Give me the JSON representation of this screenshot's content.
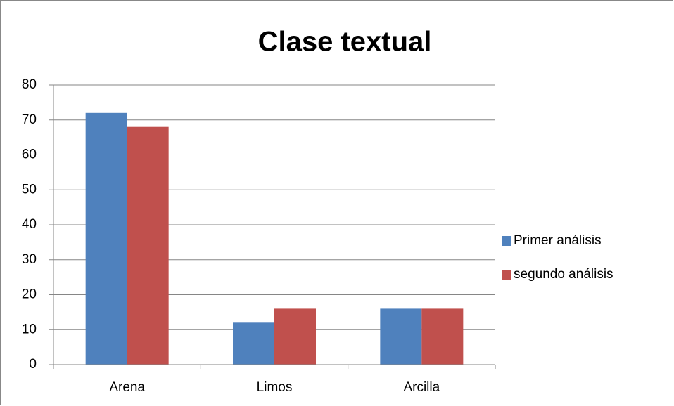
{
  "chart_data": {
    "type": "bar",
    "title": "Clase textual",
    "categories": [
      "Arena",
      "Limos",
      "Arcilla"
    ],
    "series": [
      {
        "name": "Primer análisis",
        "color": "#4f81bd",
        "values": [
          72,
          12,
          16
        ]
      },
      {
        "name": "segundo análisis",
        "color": "#c0504d",
        "values": [
          68,
          16,
          16
        ]
      }
    ],
    "ylim": [
      0,
      80
    ],
    "yticks": [
      0,
      10,
      20,
      30,
      40,
      50,
      60,
      70,
      80
    ],
    "grid": true,
    "legend": "right"
  }
}
